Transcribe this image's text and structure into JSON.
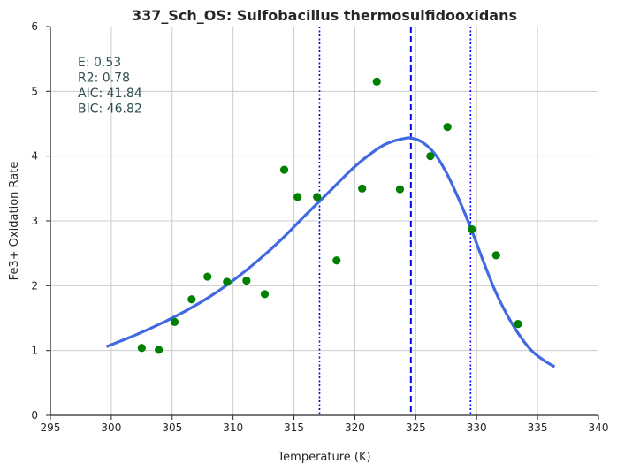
{
  "chart_data": {
    "type": "scatter",
    "title": "337_Sch_OS: Sulfobacillus thermosulfidooxidans",
    "xlabel": "Temperature (K)",
    "ylabel": "Fe3+ Oxidation Rate",
    "xlim": [
      295,
      340
    ],
    "ylim": [
      0,
      6
    ],
    "xticks": [
      295,
      300,
      305,
      310,
      315,
      320,
      325,
      330,
      335,
      340
    ],
    "yticks": [
      0,
      1,
      2,
      3,
      4,
      5,
      6
    ],
    "grid": true,
    "colors": {
      "points": "#008000",
      "fit": "#4169e1",
      "vlines": "#0000ff",
      "stats": "#2f4f4f"
    },
    "points": {
      "x": [
        302.5,
        303.9,
        305.2,
        306.6,
        307.9,
        309.5,
        311.1,
        312.6,
        314.2,
        315.3,
        316.9,
        318.5,
        320.6,
        321.8,
        323.7,
        326.2,
        327.6,
        329.6,
        331.6,
        333.4
      ],
      "y": [
        1.04,
        1.01,
        1.44,
        1.79,
        2.14,
        2.06,
        2.08,
        1.87,
        3.79,
        3.37,
        3.37,
        2.39,
        3.5,
        5.15,
        3.49,
        4.0,
        4.45,
        2.87,
        2.47,
        1.41
      ]
    },
    "fit_curve": {
      "x": [
        299.6,
        302,
        304,
        306,
        308,
        310,
        312,
        314,
        316,
        318,
        320,
        322,
        323,
        324,
        324.6,
        325.5,
        326.5,
        327.5,
        328.5,
        329.5,
        330.5,
        331.5,
        332.5,
        333.5,
        334.5,
        335.5,
        336.4
      ],
      "y": [
        1.06,
        1.24,
        1.41,
        1.6,
        1.82,
        2.08,
        2.38,
        2.72,
        3.1,
        3.47,
        3.84,
        4.13,
        4.22,
        4.27,
        4.28,
        4.22,
        4.05,
        3.75,
        3.35,
        2.9,
        2.4,
        1.93,
        1.55,
        1.24,
        1.0,
        0.85,
        0.75
      ]
    },
    "vlines": [
      {
        "x": 317.1,
        "style": "dotted"
      },
      {
        "x": 324.6,
        "style": "dashed"
      },
      {
        "x": 329.5,
        "style": "dotted"
      }
    ],
    "stats": [
      "E:  0.53",
      "R2:  0.78",
      "AIC: 41.84",
      "BIC: 46.82"
    ]
  }
}
